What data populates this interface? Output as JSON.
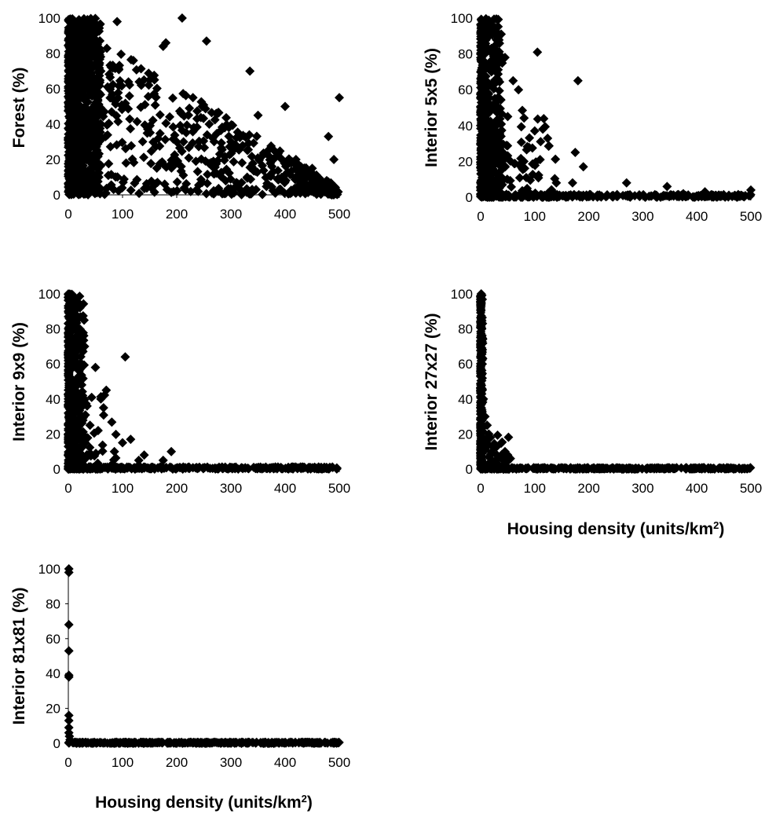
{
  "chart_data": [
    {
      "type": "scatter",
      "ylabel": "Forest (%)",
      "xlabel": "",
      "xlim": [
        0,
        500
      ],
      "ylim": [
        0,
        100
      ],
      "xticks": [
        "0",
        "100",
        "200",
        "300",
        "400",
        "500"
      ],
      "yticks": [
        "0",
        "20",
        "40",
        "60",
        "80",
        "100"
      ],
      "spread": "wide",
      "points": [
        [
          210,
          100
        ],
        [
          255,
          87
        ],
        [
          335,
          70
        ],
        [
          400,
          50
        ],
        [
          500,
          55
        ],
        [
          480,
          33
        ],
        [
          175,
          84
        ],
        [
          180,
          86
        ],
        [
          90,
          98
        ],
        [
          40,
          99
        ],
        [
          120,
          76
        ],
        [
          150,
          65
        ],
        [
          230,
          55
        ],
        [
          300,
          30
        ],
        [
          350,
          45
        ],
        [
          420,
          20
        ],
        [
          450,
          15
        ],
        [
          380,
          25
        ],
        [
          260,
          40
        ],
        [
          200,
          30
        ],
        [
          100,
          50
        ],
        [
          60,
          70
        ],
        [
          330,
          10
        ],
        [
          470,
          5
        ],
        [
          490,
          20
        ]
      ]
    },
    {
      "type": "scatter",
      "ylabel": "Interior 5x5 (%)",
      "xlabel": "",
      "xlim": [
        0,
        500
      ],
      "ylim": [
        0,
        100
      ],
      "xticks": [
        "0",
        "100",
        "200",
        "300",
        "400",
        "500"
      ],
      "yticks": [
        "0",
        "20",
        "40",
        "60",
        "80",
        "100"
      ],
      "spread": "medium",
      "points": [
        [
          105,
          81
        ],
        [
          180,
          65
        ],
        [
          30,
          92
        ],
        [
          45,
          78
        ],
        [
          60,
          65
        ],
        [
          70,
          60
        ],
        [
          115,
          38
        ],
        [
          100,
          37
        ],
        [
          50,
          45
        ],
        [
          35,
          55
        ],
        [
          175,
          25
        ],
        [
          190,
          17
        ],
        [
          110,
          21
        ],
        [
          140,
          8
        ],
        [
          170,
          8
        ],
        [
          270,
          8
        ],
        [
          345,
          6
        ],
        [
          500,
          4
        ],
        [
          415,
          3
        ],
        [
          375,
          2
        ],
        [
          80,
          20
        ],
        [
          20,
          70
        ],
        [
          10,
          88
        ]
      ]
    },
    {
      "type": "scatter",
      "ylabel": "Interior 9x9 (%)",
      "xlabel": "",
      "xlim": [
        0,
        500
      ],
      "ylim": [
        0,
        100
      ],
      "xticks": [
        "0",
        "100",
        "200",
        "300",
        "400",
        "500"
      ],
      "yticks": [
        "0",
        "20",
        "40",
        "60",
        "80",
        "100"
      ],
      "spread": "narrow",
      "points": [
        [
          105,
          64
        ],
        [
          70,
          45
        ],
        [
          50,
          58
        ],
        [
          30,
          70
        ],
        [
          20,
          80
        ],
        [
          60,
          40
        ],
        [
          65,
          35
        ],
        [
          115,
          17
        ],
        [
          100,
          15
        ],
        [
          140,
          8
        ],
        [
          190,
          10
        ],
        [
          175,
          5
        ],
        [
          40,
          25
        ],
        [
          55,
          22
        ],
        [
          10,
          85
        ],
        [
          25,
          60
        ],
        [
          85,
          10
        ],
        [
          130,
          5
        ]
      ]
    },
    {
      "type": "scatter",
      "ylabel": "Interior 27x27 (%)",
      "xlabel": "Housing density (units/km²)",
      "xlim": [
        0,
        500
      ],
      "ylim": [
        0,
        100
      ],
      "xticks": [
        "0",
        "100",
        "200",
        "300",
        "400",
        "500"
      ],
      "yticks": [
        "0",
        "20",
        "40",
        "60",
        "80",
        "100"
      ],
      "spread": "very-narrow",
      "points": [
        [
          8,
          30
        ],
        [
          12,
          25
        ],
        [
          15,
          20
        ],
        [
          18,
          18
        ],
        [
          45,
          10
        ],
        [
          50,
          8
        ],
        [
          55,
          6
        ],
        [
          25,
          12
        ],
        [
          30,
          8
        ],
        [
          5,
          40
        ],
        [
          3,
          60
        ],
        [
          2,
          80
        ],
        [
          1,
          100
        ]
      ]
    },
    {
      "type": "scatter",
      "ylabel": "Interior 81x81 (%)",
      "xlabel": "Housing density (units/km²)",
      "xlim": [
        0,
        500
      ],
      "ylim": [
        0,
        100
      ],
      "xticks": [
        "0",
        "100",
        "200",
        "300",
        "400",
        "500"
      ],
      "yticks": [
        "0",
        "20",
        "40",
        "60",
        "80",
        "100"
      ],
      "spread": "axis-only",
      "points": [
        [
          1,
          100
        ],
        [
          1,
          98
        ],
        [
          1,
          68
        ],
        [
          1,
          53
        ],
        [
          1,
          39
        ],
        [
          1,
          38
        ],
        [
          1,
          16
        ],
        [
          1,
          13
        ],
        [
          1,
          9
        ],
        [
          1,
          6
        ],
        [
          2,
          4
        ],
        [
          3,
          2
        ]
      ]
    }
  ]
}
